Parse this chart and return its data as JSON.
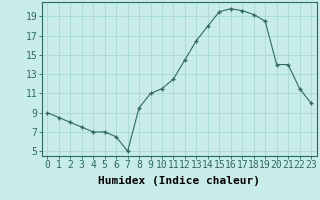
{
  "x": [
    0,
    1,
    2,
    3,
    4,
    5,
    6,
    7,
    8,
    9,
    10,
    11,
    12,
    13,
    14,
    15,
    16,
    17,
    18,
    19,
    20,
    21,
    22,
    23
  ],
  "y": [
    9.0,
    8.5,
    8.0,
    7.5,
    7.0,
    7.0,
    6.5,
    5.0,
    9.5,
    11.0,
    11.5,
    12.5,
    14.5,
    16.5,
    18.0,
    19.5,
    19.8,
    19.6,
    19.2,
    18.5,
    14.0,
    14.0,
    11.5,
    10.0
  ],
  "line_color": "#2e6b5e",
  "marker": "+",
  "background_color": "#c8ece8",
  "grid_color": "#aad8d2",
  "xlabel": "Humidex (Indice chaleur)",
  "xlabel_fontsize": 8,
  "ylabel_ticks": [
    5,
    7,
    9,
    11,
    13,
    15,
    17,
    19
  ],
  "xlim": [
    -0.5,
    23.5
  ],
  "ylim": [
    4.5,
    20.5
  ],
  "tick_fontsize": 7
}
